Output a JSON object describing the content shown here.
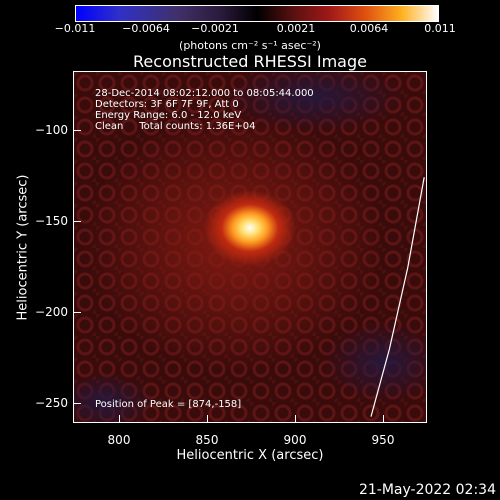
{
  "colorbar": {
    "ticks": [
      "−0.011",
      "−0.0064",
      "−0.0021",
      "0.0021",
      "0.0064",
      "0.011"
    ],
    "units": "(photons cm⁻² s⁻¹ asec⁻²)"
  },
  "title": "Reconstructed RHESSI Image",
  "info": {
    "line1": "28-Dec-2014 08:02:12.000 to 08:05:44.000",
    "line2": "Detectors: 3F 6F 7F 9F, Att 0",
    "line3": "Energy Range: 6.0 - 12.0 keV",
    "line4": "Clean     Total counts: 1.36E+04",
    "peak": "Position of Peak = [874,-158]"
  },
  "axes": {
    "xlabel": "Heliocentric X (arcsec)",
    "ylabel": "Heliocentric Y (arcsec)",
    "xticks": [
      "800",
      "850",
      "900",
      "950"
    ],
    "yticks": [
      "−100",
      "−150",
      "−200",
      "−250"
    ]
  },
  "footer": {
    "timestamp": "21-May-2022 02:34"
  },
  "chart_data": {
    "type": "heatmap",
    "title": "Reconstructed RHESSI Image",
    "xlabel": "Heliocentric X (arcsec)",
    "ylabel": "Heliocentric Y (arcsec)",
    "xlim": [
      778,
      970
    ],
    "ylim": [
      -265,
      -72
    ],
    "colorbar_range": [
      -0.011,
      0.011
    ],
    "peak": [
      874,
      -158
    ],
    "limb_curve_x": [
      969,
      960,
      950,
      940
    ],
    "limb_curve_y": [
      -130,
      -180,
      -225,
      -262
    ]
  }
}
